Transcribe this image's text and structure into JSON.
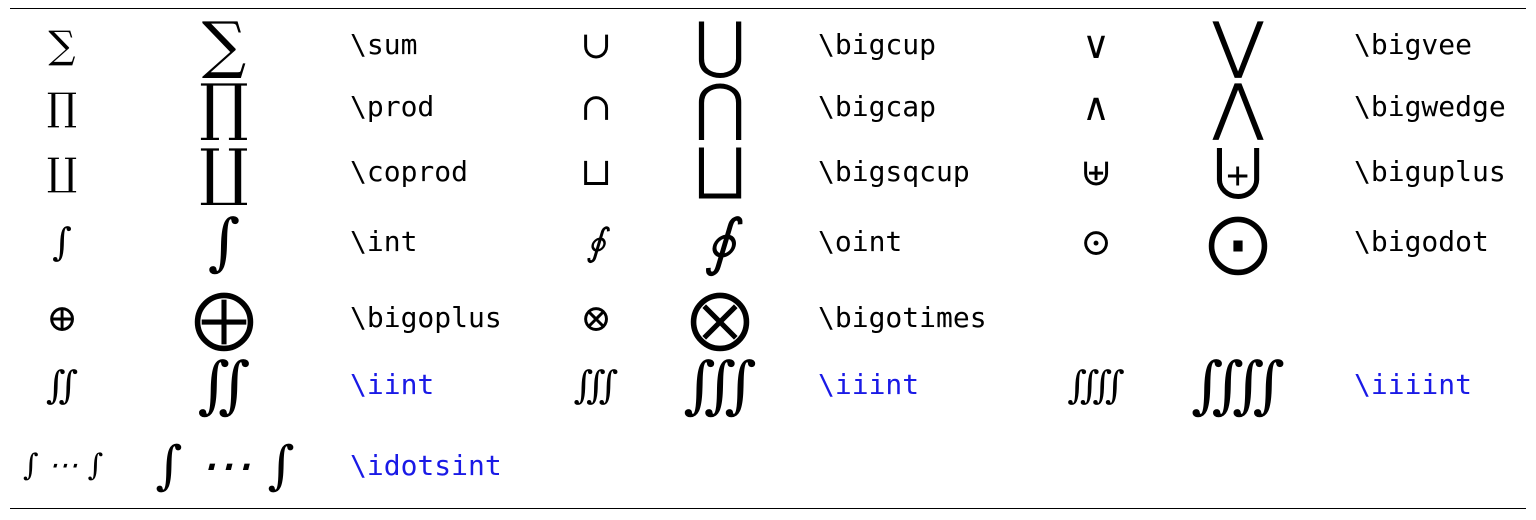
{
  "colors": {
    "text": "#000000",
    "ams_command": "#1a1ae6",
    "rule": "#000000"
  },
  "rows": [
    {
      "groups": [
        {
          "small": "∑",
          "large": "∑",
          "command": "\\sum",
          "ams": false
        },
        {
          "small": "∪",
          "large": "⋃",
          "command": "\\bigcup",
          "ams": false
        },
        {
          "small": "∨",
          "large": "⋁",
          "command": "\\bigvee",
          "ams": false
        }
      ]
    },
    {
      "groups": [
        {
          "small": "∏",
          "large": "∏",
          "command": "\\prod",
          "ams": false
        },
        {
          "small": "∩",
          "large": "⋂",
          "command": "\\bigcap",
          "ams": false
        },
        {
          "small": "∧",
          "large": "⋀",
          "command": "\\bigwedge",
          "ams": false
        }
      ]
    },
    {
      "groups": [
        {
          "small": "∐",
          "large": "∐",
          "command": "\\coprod",
          "ams": false
        },
        {
          "small": "⊔",
          "large": "⨆",
          "command": "\\bigsqcup",
          "ams": false
        },
        {
          "small": "⊎",
          "large": "⨄",
          "command": "\\biguplus",
          "ams": false
        }
      ]
    },
    {
      "groups": [
        {
          "small": "∫",
          "large": "∫",
          "command": "\\int",
          "ams": false
        },
        {
          "small": "∮",
          "large": "∮",
          "command": "\\oint",
          "ams": false
        },
        {
          "small": "⊙",
          "large": "⨀",
          "command": "\\bigodot",
          "ams": false
        }
      ]
    },
    {
      "groups": [
        {
          "small": "⊕",
          "large": "⨁",
          "command": "\\bigoplus",
          "ams": false
        },
        {
          "small": "⊗",
          "large": "⨂",
          "command": "\\bigotimes",
          "ams": false
        }
      ]
    },
    {
      "groups": [
        {
          "small": "∬",
          "large": "∬",
          "command": "\\iint",
          "ams": true
        },
        {
          "small": "∭",
          "large": "∭",
          "command": "\\iiint",
          "ams": true
        },
        {
          "small": "⨌",
          "large": "⨌",
          "command": "\\iiiint",
          "ams": true
        }
      ]
    },
    {
      "groups": [
        {
          "small": "∫ ⋯ ∫",
          "large": "∫ ⋯ ∫",
          "command": "\\idotsint",
          "ams": true
        }
      ]
    }
  ]
}
